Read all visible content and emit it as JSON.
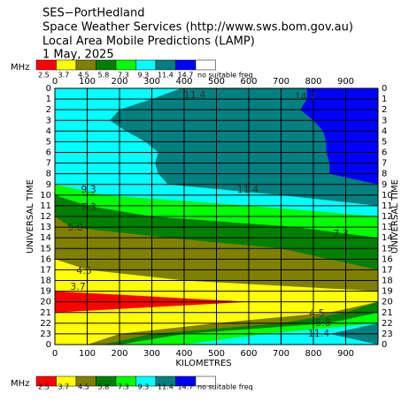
{
  "chart_data": {
    "type": "contour",
    "title_lines": [
      "SES−PortHedland",
      "Space Weather Services (http://www.sws.bom.gov.au)",
      "Local Area Mobile Predictions (LAMP)",
      "1 May, 2025"
    ],
    "legend_unit": "MHz",
    "no_data_label": "no suitable freq",
    "xlabel": "KILOMETRES",
    "ylabel": "UNIVERSAL TIME",
    "xlim": [
      0,
      1000
    ],
    "xticks": [
      0,
      100,
      200,
      300,
      400,
      500,
      600,
      700,
      800,
      900
    ],
    "ylim": [
      0,
      24
    ],
    "yticks": [
      0,
      1,
      2,
      3,
      4,
      5,
      6,
      7,
      8,
      9,
      10,
      11,
      12,
      13,
      14,
      15,
      16,
      17,
      18,
      19,
      20,
      21,
      22,
      23,
      {
        "value": 24,
        "label": "0"
      }
    ],
    "grid": true,
    "series": [
      {
        "name": "2.5",
        "color": "#ff0000",
        "values": [
          0,
          0,
          0,
          0,
          0,
          0,
          0,
          0,
          0,
          0,
          0,
          0,
          0,
          0,
          0,
          0,
          0,
          0,
          0,
          0,
          0,
          0,
          0,
          0,
          0
        ]
      },
      {
        "name": "3.7",
        "color": "#ffff00",
        "values": [
          0,
          0,
          0,
          0,
          0,
          0,
          0,
          0,
          0,
          0,
          0,
          0,
          0,
          0,
          0,
          0,
          0,
          0,
          0,
          0,
          600,
          0,
          0,
          0,
          0
        ]
      },
      {
        "name": "4.5",
        "color": "#808000",
        "values": [
          0,
          0,
          0,
          0,
          0,
          0,
          0,
          0,
          0,
          0,
          0,
          0,
          0,
          0,
          0,
          0,
          0,
          100,
          400,
          1000,
          1000,
          850,
          500,
          200,
          100
        ]
      },
      {
        "name": "5.8",
        "color": "#008000",
        "values": [
          0,
          0,
          0,
          0,
          0,
          0,
          0,
          0,
          0,
          0,
          0,
          0,
          0,
          50,
          350,
          700,
          850,
          1000,
          1000,
          1000,
          1000,
          900,
          700,
          300,
          150
        ]
      },
      {
        "name": "7.3",
        "color": "#00ff00",
        "values": [
          0,
          0,
          0,
          0,
          0,
          0,
          0,
          0,
          0,
          0,
          0,
          100,
          300,
          750,
          1000,
          1000,
          1000,
          1000,
          1000,
          1000,
          1000,
          1000,
          850,
          400,
          200
        ]
      },
      {
        "name": "9.3",
        "color": "#00ffff",
        "values": [
          0,
          0,
          0,
          0,
          0,
          0,
          0,
          0,
          0,
          0,
          150,
          600,
          1000,
          1000,
          1000,
          1000,
          1000,
          1000,
          1000,
          1000,
          1000,
          1000,
          1000,
          650,
          400
        ]
      },
      {
        "name": "11.4",
        "color": "#008080",
        "values": [
          390,
          300,
          200,
          170,
          220,
          280,
          320,
          310,
          320,
          350,
          700,
          1000,
          1000,
          1000,
          1000,
          1000,
          1000,
          1000,
          1000,
          1000,
          1000,
          1000,
          1000,
          850,
          1000
        ]
      },
      {
        "name": "14.7",
        "color": "#0000ff",
        "values": [
          780,
          780,
          760,
          800,
          830,
          840,
          840,
          850,
          850,
          1000,
          1000,
          1000,
          1000,
          1000,
          1000,
          1000,
          1000,
          1000,
          1000,
          1000,
          1000,
          1000,
          1000,
          1000,
          1000
        ]
      }
    ],
    "annotations": [
      "11.4",
      "14.7",
      "9.3",
      "11.4",
      "7.3",
      "5.8",
      "7.3",
      "4.5",
      "3.7",
      "4.5",
      "5.8",
      "11.4"
    ]
  }
}
